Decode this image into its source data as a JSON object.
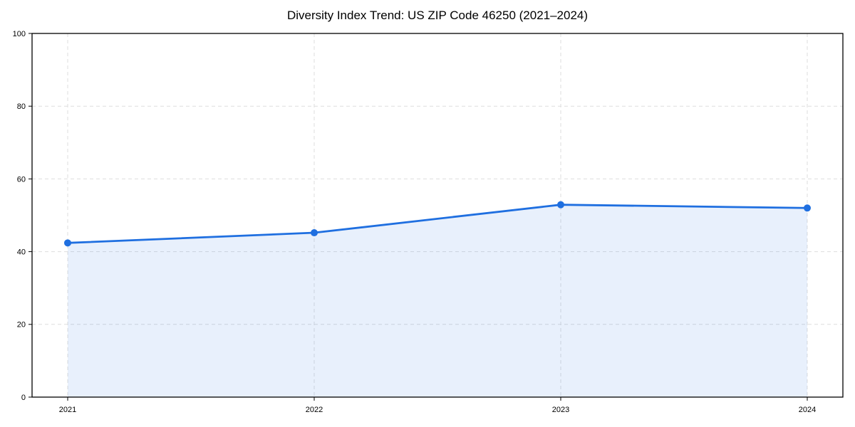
{
  "chart_data": {
    "type": "line",
    "title": "Diversity Index Trend: US ZIP Code 46250 (2021–2024)",
    "categories": [
      "2021",
      "2022",
      "2023",
      "2024"
    ],
    "values": [
      42.4,
      45.2,
      52.9,
      52.0
    ],
    "xlabel": "",
    "ylabel": "",
    "ylim": [
      0,
      100
    ],
    "yticks": [
      0,
      20,
      40,
      60,
      80,
      100
    ],
    "grid": "dashed",
    "legend": "none",
    "area_fill": true,
    "marker": "circle",
    "colors": {
      "line": "#1f6fe0",
      "marker": "#1f6fe0",
      "fill": "rgba(31,111,224,0.10)",
      "grid": "#dedede",
      "spine": "#000000",
      "text": "#000000",
      "background": "#ffffff"
    }
  }
}
